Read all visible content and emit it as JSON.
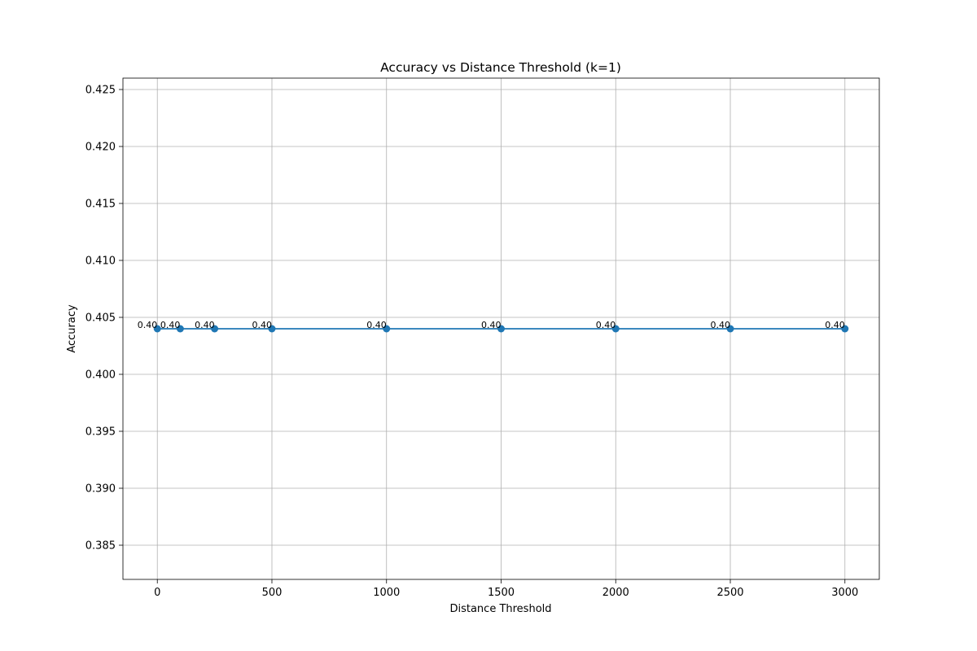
{
  "chart_data": {
    "type": "line",
    "title": "Accuracy vs Distance Threshold (k=1)",
    "xlabel": "Distance Threshold",
    "ylabel": "Accuracy",
    "xlim": [
      -150,
      3150
    ],
    "ylim": [
      0.382,
      0.426
    ],
    "xticks": [
      0,
      500,
      1000,
      1500,
      2000,
      2500,
      3000
    ],
    "xtick_labels": [
      "0",
      "500",
      "1000",
      "1500",
      "2000",
      "2500",
      "3000"
    ],
    "yticks": [
      0.385,
      0.39,
      0.395,
      0.4,
      0.405,
      0.41,
      0.415,
      0.42,
      0.425
    ],
    "ytick_labels": [
      "0.385",
      "0.390",
      "0.395",
      "0.400",
      "0.405",
      "0.410",
      "0.415",
      "0.420",
      "0.425"
    ],
    "grid": true,
    "series": [
      {
        "x": [
          0,
          100,
          250,
          500,
          1000,
          1500,
          2000,
          2500,
          3000
        ],
        "y": [
          0.404,
          0.404,
          0.404,
          0.404,
          0.404,
          0.404,
          0.404,
          0.404,
          0.404
        ],
        "labels": [
          "0.40",
          "0.40",
          "0.40",
          "0.40",
          "0.40",
          "0.40",
          "0.40",
          "0.40",
          "0.40"
        ],
        "color": "#1f77b4",
        "marker": "circle"
      }
    ]
  }
}
